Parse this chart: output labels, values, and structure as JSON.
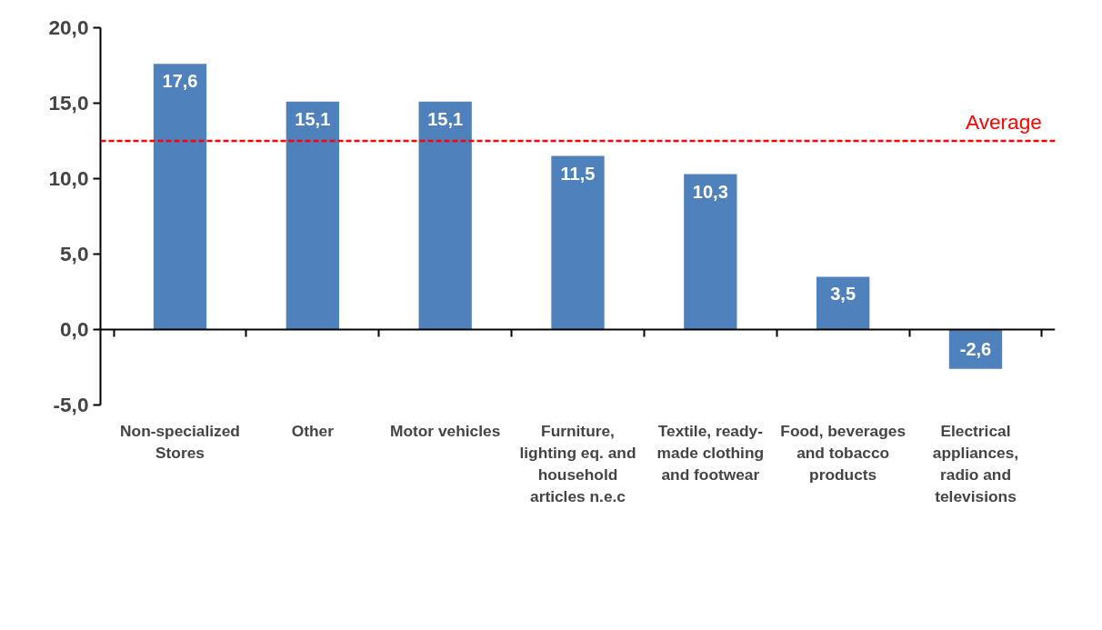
{
  "chart_data": {
    "type": "bar",
    "categories": [
      "Non-specialized Stores",
      "Other",
      "Motor vehicles",
      "Furniture, lighting eq. and household articles n.e.c",
      "Textile, ready-made clothing and footwear",
      "Food, beverages and tobacco products",
      "Electrical appliances, radio and televisions"
    ],
    "values": [
      17.6,
      15.1,
      15.1,
      11.5,
      10.3,
      3.5,
      -2.6
    ],
    "color": "#4f81bd",
    "data_labels": true,
    "value_labels": [
      "17,6",
      "15,1",
      "15,1",
      "11,5",
      "10,3",
      "3,5",
      "-2,6"
    ],
    "ylim": [
      -5,
      20
    ],
    "yticks": [
      {
        "value": -5,
        "label": "-5,0"
      },
      {
        "value": 0,
        "label": "0,0"
      },
      {
        "value": 5,
        "label": "5,0"
      },
      {
        "value": 10,
        "label": "10,0"
      },
      {
        "value": 15,
        "label": "15,0"
      },
      {
        "value": 20,
        "label": "20,0"
      }
    ],
    "ref_lines": [
      {
        "axis": "y",
        "value": 12.5,
        "label": "Average",
        "color": "#ff0000",
        "line_style": "dashed"
      }
    ]
  }
}
